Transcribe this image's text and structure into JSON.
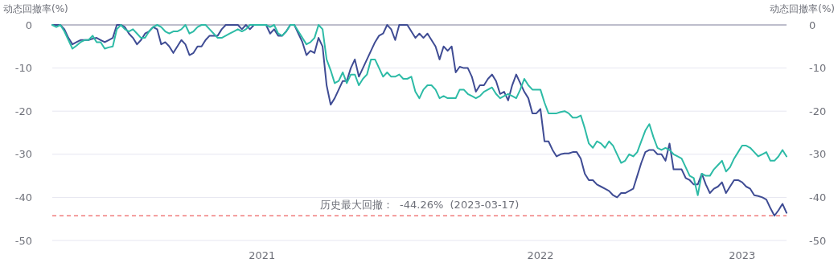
{
  "chart_data": {
    "type": "line",
    "ylabel": "动态回撤率(%)",
    "y2label": "动态回撤率(%)",
    "categories": [
      null,
      null,
      null,
      null,
      null,
      null,
      null,
      null,
      null,
      null,
      null,
      null,
      null,
      null,
      null,
      null,
      null,
      null,
      null,
      null,
      null,
      null,
      null,
      null,
      null,
      null,
      null,
      null,
      null,
      null,
      null,
      null,
      null,
      null,
      null,
      null,
      null,
      null,
      null,
      null,
      null,
      null,
      null,
      null,
      null,
      null,
      null,
      null,
      null,
      null,
      null,
      null,
      "2021",
      null,
      null,
      null,
      null,
      null,
      null,
      null,
      null,
      null,
      null,
      null,
      null,
      null,
      null,
      null,
      null,
      null,
      null,
      null,
      null,
      null,
      null,
      null,
      null,
      null,
      null,
      null,
      null,
      null,
      null,
      null,
      null,
      null,
      null,
      null,
      null,
      null,
      null,
      null,
      null,
      null,
      null,
      null,
      null,
      null,
      null,
      null,
      null,
      null,
      null,
      null,
      null,
      null,
      null,
      null,
      null,
      null,
      null,
      null,
      null,
      null,
      null,
      null,
      null,
      null,
      null,
      null,
      null,
      "2022",
      null,
      null,
      null,
      null,
      null,
      null,
      null,
      null,
      null,
      null,
      null,
      null,
      null,
      null,
      null,
      null,
      null,
      null,
      null,
      null,
      null,
      null,
      null,
      null,
      null,
      null,
      null,
      null,
      null,
      null,
      null,
      null,
      null,
      null,
      null,
      null,
      null,
      null,
      null,
      null,
      null,
      null,
      null,
      null,
      null,
      null,
      null,
      null,
      null,
      "2023",
      null,
      null,
      null,
      null,
      null,
      null,
      null,
      null,
      null,
      null,
      null
    ],
    "series": [
      {
        "color": "#3f4c94",
        "values": [
          0,
          0,
          0,
          -1,
          -3,
          -4.5,
          -4,
          -3.5,
          -3.5,
          -3.5,
          -3.2,
          -3,
          -3.5,
          -4,
          -3.5,
          -3,
          0,
          0,
          -0.5,
          -2,
          -3,
          -4.5,
          -3.5,
          -2,
          -1.5,
          -0.5,
          -1,
          -4.5,
          -4,
          -5,
          -6.5,
          -5,
          -3.5,
          -4.5,
          -7,
          -6.5,
          -5,
          -5,
          -3.5,
          -2.5,
          -2.5,
          -2.5,
          -1,
          0,
          0,
          0,
          0,
          -1,
          0,
          -1,
          0,
          0,
          0,
          0,
          -2,
          -1,
          -2.5,
          -2.5,
          -1.5,
          0,
          0,
          -2,
          -4,
          -7,
          -6,
          -6.5,
          -3,
          -5,
          -14,
          -18.5,
          -17,
          -15,
          -13,
          -13,
          -10,
          -8,
          -12,
          -10,
          -8,
          -6,
          -4,
          -2.5,
          -2,
          0,
          -1,
          -3.5,
          0,
          0,
          0,
          -1.5,
          -3,
          -2,
          -3,
          -2,
          -3.5,
          -5,
          -8,
          -5,
          -6,
          -5,
          -11,
          -9.7,
          -10,
          -10,
          -12,
          -15.5,
          -14,
          -14,
          -12.5,
          -11.5,
          -13,
          -16,
          -15.5,
          -17.5,
          -14,
          -11.5,
          -13.5,
          -15.5,
          -17,
          -20.5,
          -20.5,
          -19.5,
          -27,
          -27,
          -29,
          -30.5,
          -30,
          -29.8,
          -29.8,
          -29.5,
          -29.5,
          -31,
          -34.5,
          -36,
          -36,
          -37,
          -37.5,
          -38,
          -38.5,
          -39.5,
          -40,
          -39,
          -39,
          -38.5,
          -38,
          -35,
          -32,
          -29.5,
          -29,
          -29,
          -30,
          -30,
          -31.5,
          -27.5,
          -33.5,
          -33.5,
          -33.5,
          -35.5,
          -36,
          -37,
          -37,
          -34.5,
          -37,
          -39,
          -38,
          -37.5,
          -36.5,
          -39,
          -37.5,
          -36,
          -36,
          -36.5,
          -37.5,
          -38,
          -39.5,
          -39.7,
          -40,
          -40.5,
          -42.5,
          -44.26,
          -43,
          -41.5,
          -43.6
        ]
      },
      {
        "color": "#2dbba6",
        "values": [
          0,
          -0.5,
          0,
          -1.5,
          -3.5,
          -5.5,
          -4.8,
          -4,
          -3.5,
          -3.5,
          -2.5,
          -4,
          -4,
          -5.5,
          -5.2,
          -5,
          -1,
          0,
          -1,
          -1.5,
          -1,
          -2,
          -3,
          -3,
          -1.5,
          -0.5,
          0,
          -0.5,
          -1.5,
          -2,
          -1.5,
          -1.5,
          -1,
          0,
          -2,
          -1.5,
          -0.5,
          0,
          0,
          -1,
          -2,
          -3,
          -3,
          -2.5,
          -2,
          -1.5,
          -1,
          -1.5,
          -1,
          0,
          0,
          0,
          0,
          0,
          -0.5,
          0,
          -2,
          -2.5,
          -1.5,
          0,
          0,
          -1.5,
          -3,
          -4.5,
          -4,
          -3,
          0,
          -1,
          -8,
          -10.5,
          -13.5,
          -13,
          -11,
          -13.5,
          -11.5,
          -11.5,
          -14,
          -12.5,
          -11.5,
          -8,
          -8,
          -10,
          -12,
          -11,
          -12,
          -12,
          -11.5,
          -12.5,
          -12.5,
          -12,
          -15.5,
          -17,
          -15,
          -14,
          -14,
          -15,
          -17,
          -16.5,
          -17,
          -17,
          -17,
          -15,
          -15,
          -16,
          -16.5,
          -17,
          -16.5,
          -15.5,
          -15,
          -14.5,
          -16,
          -17,
          -16.5,
          -16,
          -16.5,
          -17,
          -15,
          -12.5,
          -14,
          -15,
          -15,
          -15,
          -18,
          -20.5,
          -20.5,
          -20.5,
          -20.2,
          -20,
          -20.5,
          -21.5,
          -21.5,
          -21,
          -24,
          -27.5,
          -28.5,
          -27,
          -27.5,
          -28.5,
          -27,
          -28,
          -30,
          -32,
          -31.5,
          -30,
          -30.5,
          -29.5,
          -27,
          -24.5,
          -23,
          -26,
          -28.5,
          -29,
          -28.5,
          -29,
          -30,
          -30.5,
          -31,
          -33,
          -35,
          -35.5,
          -39.5,
          -34.5,
          -35,
          -35,
          -33.5,
          -32.5,
          -31.5,
          -34,
          -33,
          -31,
          -29.5,
          -28,
          -28,
          -28.5,
          -29.5,
          -30.5,
          -30,
          -29.5,
          -31.5,
          -31.5,
          -30.5,
          -29,
          -30.5
        ]
      }
    ],
    "ylim": [
      -50,
      0
    ],
    "yticks": [
      -50,
      -40,
      -30,
      -20,
      -10,
      0
    ],
    "y2lim": [
      -50,
      0
    ],
    "y2ticks": [
      -50,
      -40,
      -30,
      -20,
      -10,
      0
    ],
    "grid": "y",
    "marker": "none",
    "line_style": "solid",
    "ref_lines": [
      {
        "axis": "y",
        "value": -44.26,
        "label": "历史最大回撤：  -44.26%  (2023-03-17)",
        "color": "#e83a3a",
        "line_style": "dashed"
      }
    ]
  }
}
